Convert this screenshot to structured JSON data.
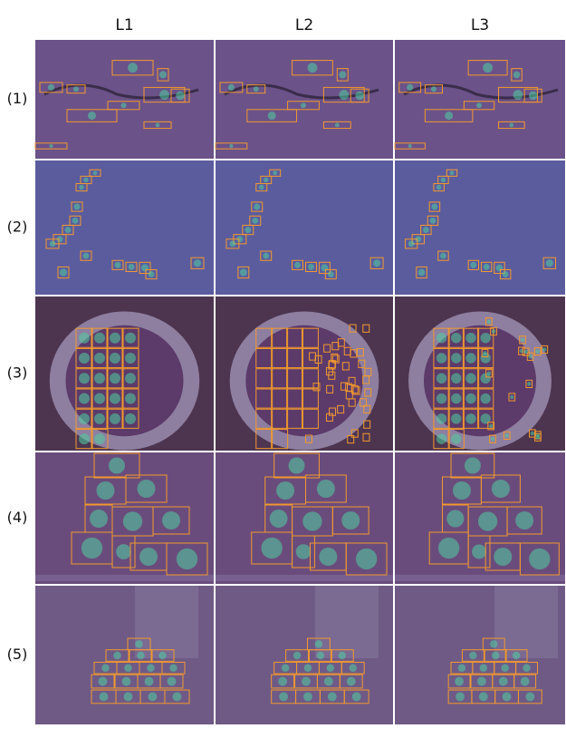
{
  "columns": [
    "L1",
    "L2",
    "L3"
  ],
  "rows": [
    "(1)",
    "(2)",
    "(3)",
    "(4)",
    "(5)"
  ]
}
